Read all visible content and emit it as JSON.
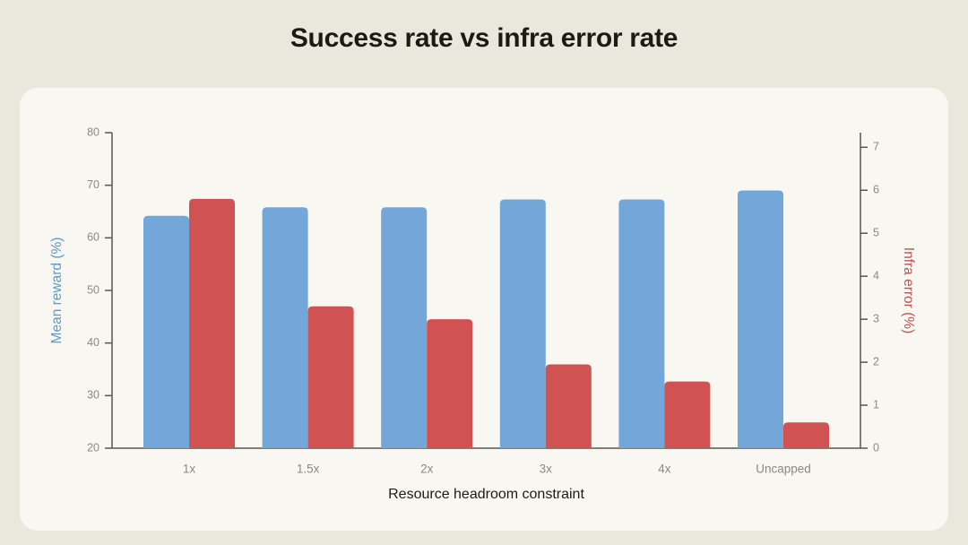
{
  "page": {
    "title": "Success rate vs infra error rate"
  },
  "colors": {
    "page_bg": "#eae8dd",
    "card_bg": "#f8f7f1",
    "bar_blue": "#74a7d9",
    "bar_red": "#d15252",
    "left_label_color": "#5b9acd",
    "right_label_color": "#c25150",
    "tick_text": "#8b8a82",
    "axis_line": "#57564f",
    "title_text": "#1b1b16"
  },
  "chart_data": {
    "type": "bar",
    "title": "Success rate vs infra error rate",
    "categories": [
      "1x",
      "1.5x",
      "2x",
      "3x",
      "4x",
      "Uncapped"
    ],
    "series": [
      {
        "name": "Mean reward (%)",
        "axis": "left",
        "color": "#74a7d9",
        "values": [
          64.2,
          65.8,
          65.8,
          67.3,
          67.3,
          69.0
        ]
      },
      {
        "name": "Infra error (%)",
        "axis": "right",
        "color": "#d15252",
        "values": [
          5.8,
          3.3,
          3.0,
          1.95,
          1.55,
          0.6
        ]
      }
    ],
    "xlabel": "Resource headroom constraint",
    "ylabel_left": "Mean reward (%)",
    "ylabel_right": "Infra error (%)",
    "left_axis": {
      "min": 20,
      "max": 80,
      "ticks": [
        20,
        30,
        40,
        50,
        60,
        70,
        80
      ]
    },
    "right_axis": {
      "min": 0,
      "max": 7,
      "ticks": [
        0,
        1,
        2,
        3,
        4,
        5,
        6,
        7
      ]
    },
    "grid": false,
    "legend": "none"
  }
}
